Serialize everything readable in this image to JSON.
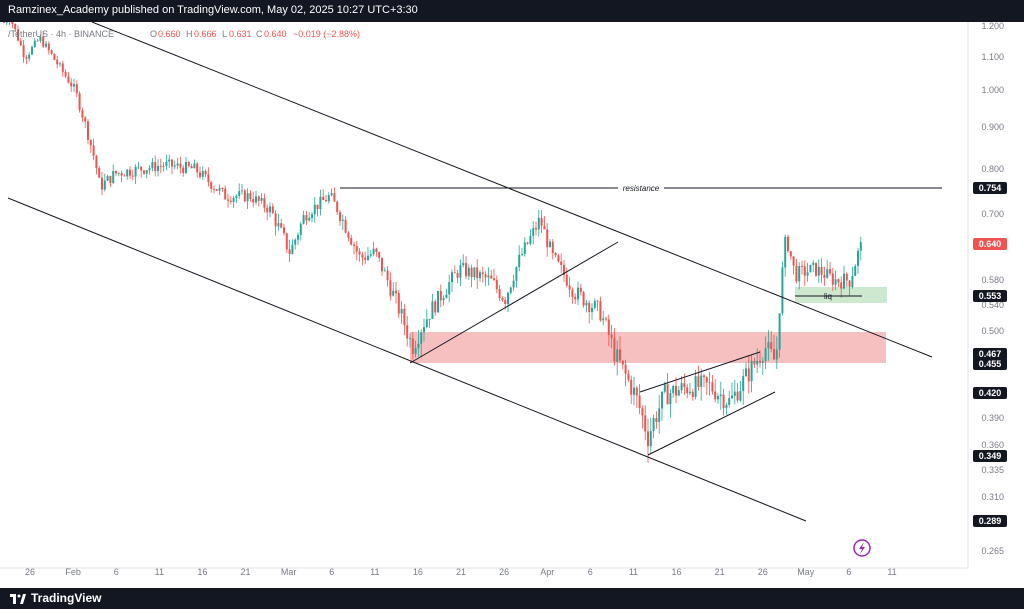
{
  "header": {
    "attribution": "Ramzinex_Academy published on TradingView.com, May 02, 2025 10:27 UTC+3:30"
  },
  "legend": {
    "symbol": "/TetherUS · 4h · BINANCE",
    "o_label": "O",
    "o": "0.660",
    "h_label": "H",
    "h": "0.666",
    "l_label": "L",
    "l": "0.631",
    "c_label": "C",
    "c": "0.640",
    "change": "−0.019 (−2.88%)"
  },
  "footer": {
    "brand": "TradingView"
  },
  "colors": {
    "up": "#26a69a",
    "down": "#ef5350",
    "zone": "#f5b5b5",
    "liq_zone": "#c8e6c9",
    "line": "#131722"
  },
  "annotations": {
    "resistance": "resistance",
    "liq": "liq"
  },
  "chart_data": {
    "type": "candlestick",
    "title": "",
    "ylim": [
      0.25,
      1.2
    ],
    "y_ticks": [
      "1.200",
      "1.100",
      "1.000",
      "0.900",
      "0.800",
      "0.700",
      "0.580",
      "0.540",
      "0.500",
      "0.390",
      "0.360",
      "0.335",
      "0.310",
      "0.265"
    ],
    "x_ticks": [
      "26",
      "Feb",
      "6",
      "11",
      "16",
      "21",
      "Mar",
      "6",
      "11",
      "16",
      "21",
      "26",
      "Apr",
      "6",
      "11",
      "16",
      "21",
      "26",
      "May",
      "6",
      "11"
    ],
    "price_labels": [
      {
        "value": "0.754"
      },
      {
        "value": "0.640",
        "current": true
      },
      {
        "value": "0.553"
      },
      {
        "value": "0.467"
      },
      {
        "value": "0.455"
      },
      {
        "value": "0.420"
      },
      {
        "value": "0.349"
      },
      {
        "value": "0.289"
      }
    ],
    "anchors": [
      [
        0,
        1.2
      ],
      [
        10,
        1.23
      ],
      [
        25,
        1.1
      ],
      [
        40,
        1.16
      ],
      [
        55,
        1.09
      ],
      [
        75,
        1.0
      ],
      [
        95,
        0.82
      ],
      [
        100,
        0.76
      ],
      [
        115,
        0.79
      ],
      [
        140,
        0.8
      ],
      [
        165,
        0.81
      ],
      [
        195,
        0.8
      ],
      [
        225,
        0.74
      ],
      [
        250,
        0.74
      ],
      [
        270,
        0.71
      ],
      [
        290,
        0.63
      ],
      [
        305,
        0.7
      ],
      [
        330,
        0.74
      ],
      [
        345,
        0.68
      ],
      [
        360,
        0.62
      ],
      [
        375,
        0.63
      ],
      [
        395,
        0.55
      ],
      [
        412,
        0.48
      ],
      [
        430,
        0.53
      ],
      [
        460,
        0.6
      ],
      [
        490,
        0.58
      ],
      [
        505,
        0.55
      ],
      [
        520,
        0.62
      ],
      [
        540,
        0.69
      ],
      [
        553,
        0.62
      ],
      [
        575,
        0.56
      ],
      [
        600,
        0.53
      ],
      [
        615,
        0.47
      ],
      [
        635,
        0.42
      ],
      [
        648,
        0.37
      ],
      [
        665,
        0.42
      ],
      [
        690,
        0.43
      ],
      [
        710,
        0.43
      ],
      [
        730,
        0.41
      ],
      [
        750,
        0.45
      ],
      [
        765,
        0.48
      ],
      [
        776,
        0.46
      ],
      [
        781,
        0.57
      ],
      [
        786,
        0.66
      ],
      [
        795,
        0.59
      ],
      [
        815,
        0.6
      ],
      [
        835,
        0.58
      ],
      [
        850,
        0.58
      ],
      [
        860,
        0.64
      ]
    ]
  }
}
